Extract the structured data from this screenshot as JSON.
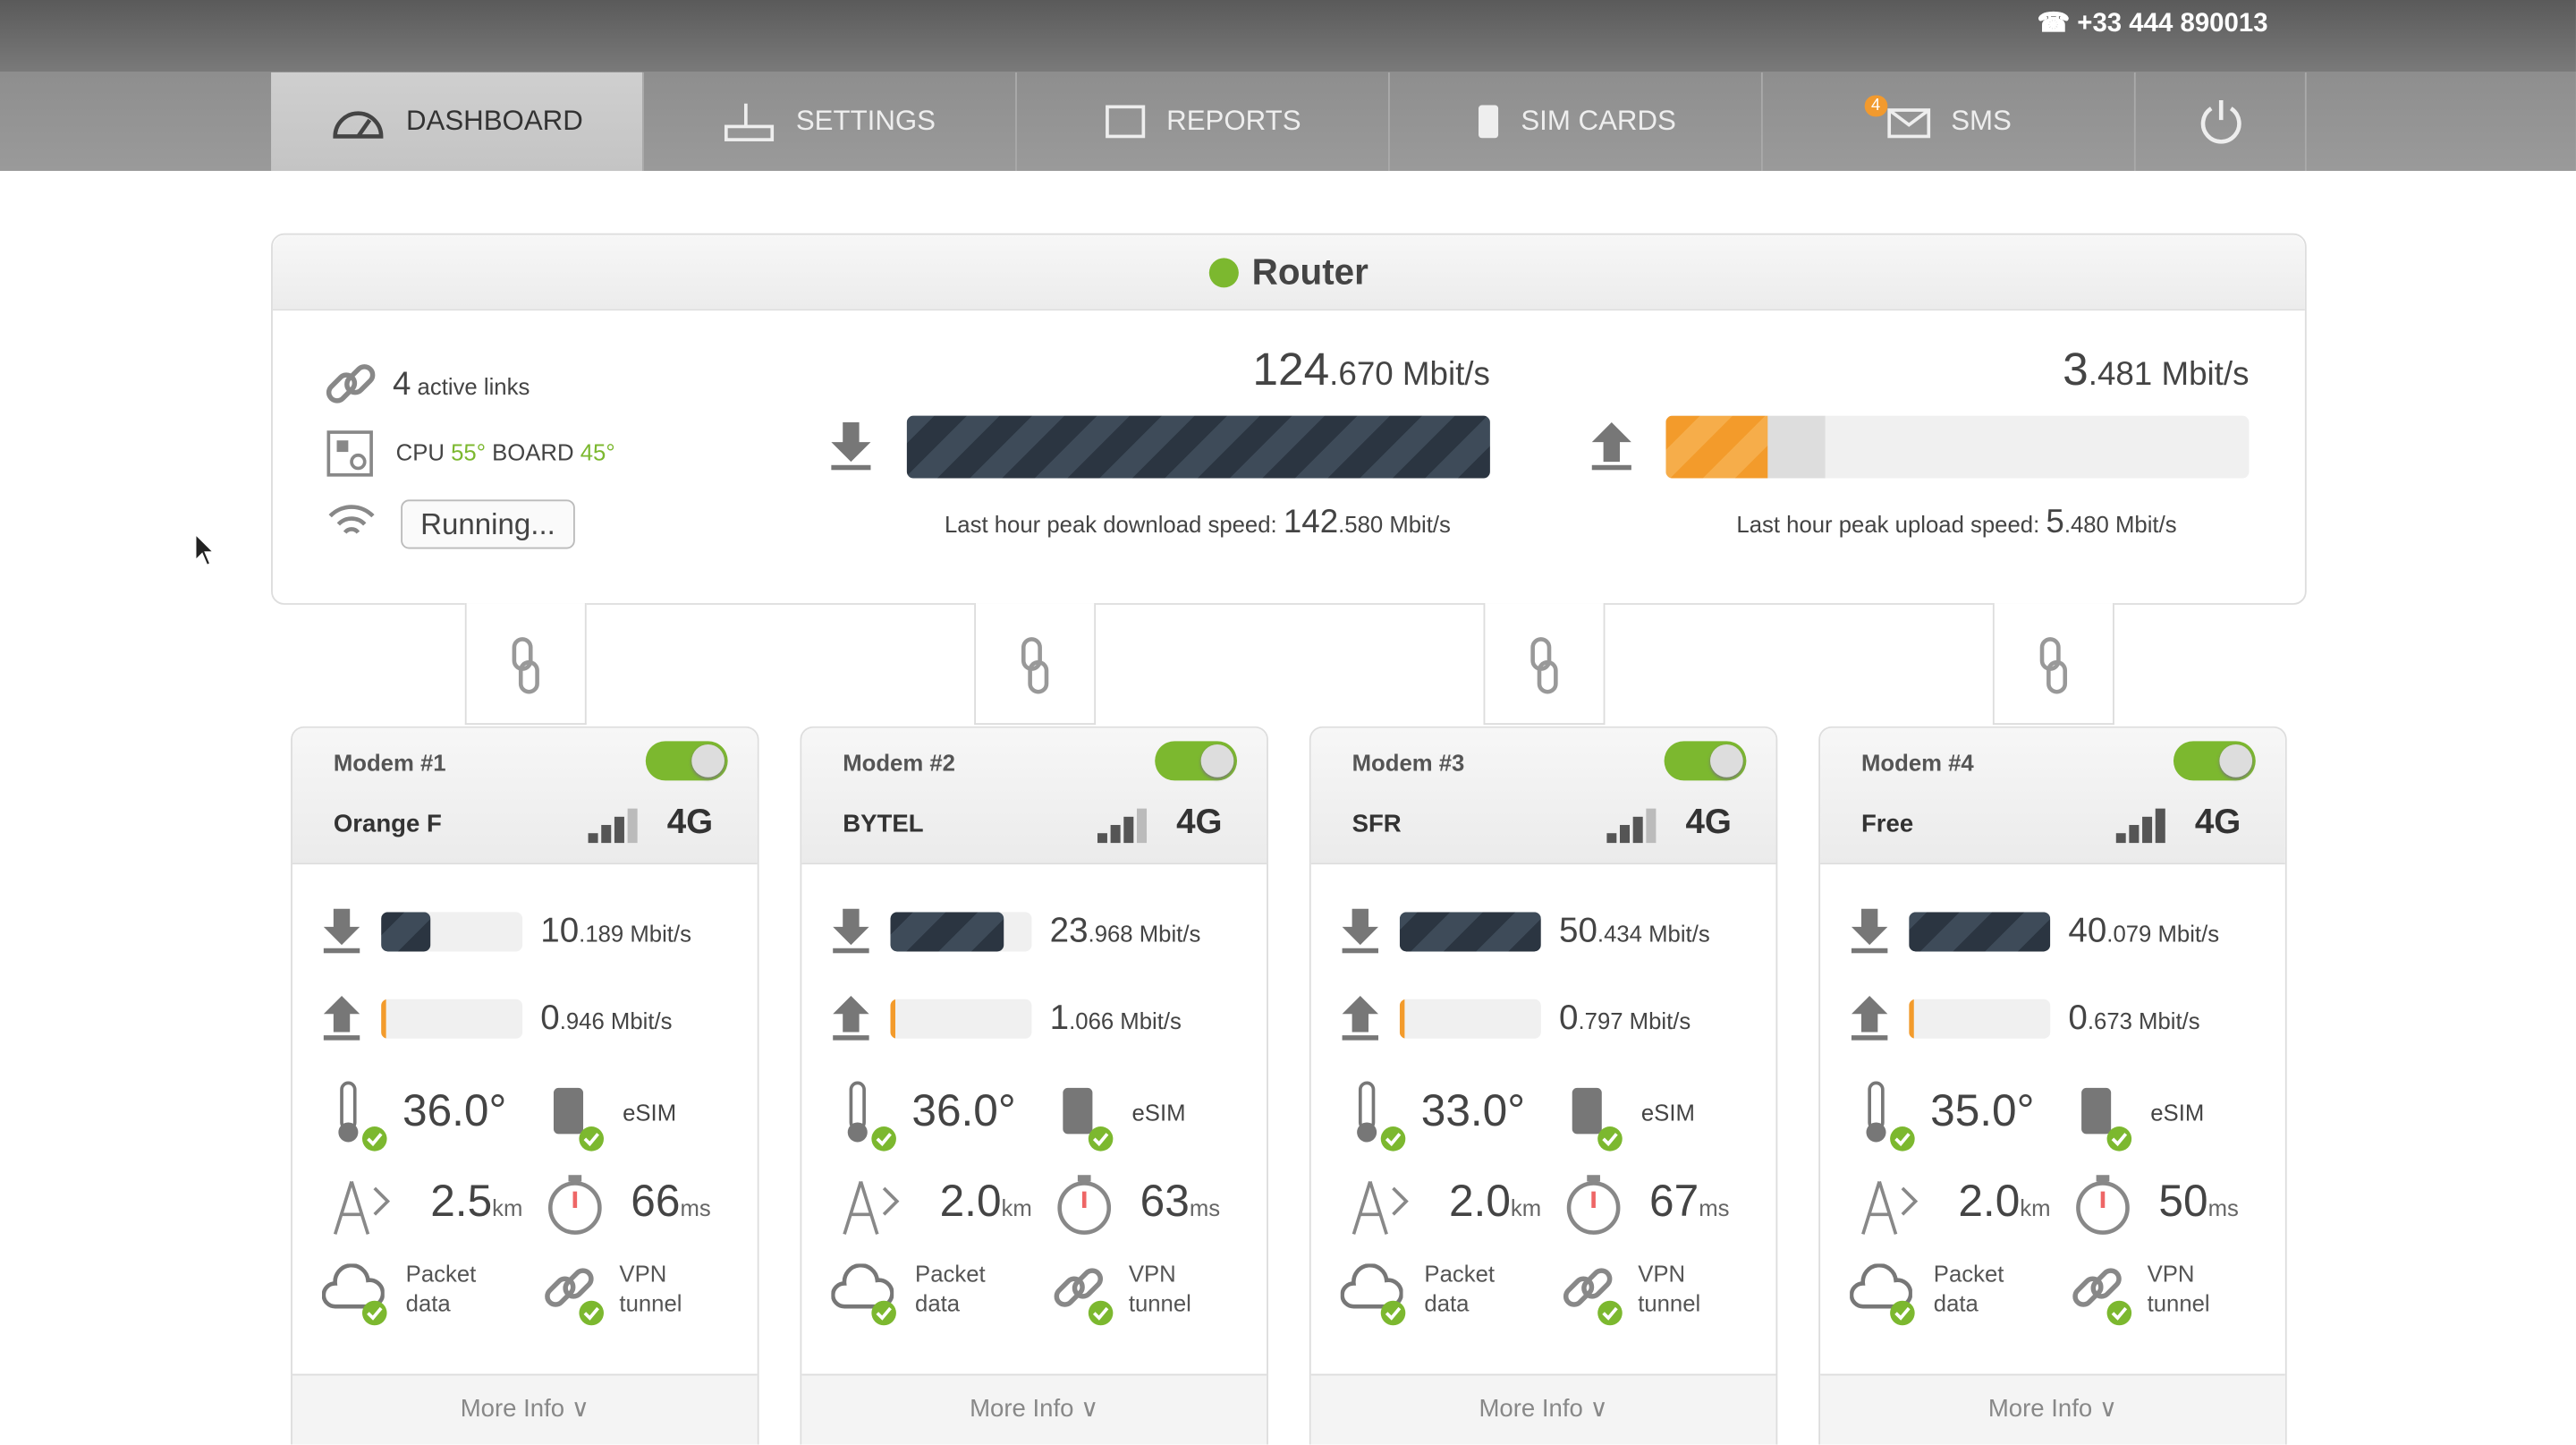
{
  "header": {
    "phone": "+33 444 890013"
  },
  "nav": {
    "tabs": [
      "DASHBOARD",
      "SETTINGS",
      "REPORTS",
      "SIM CARDS",
      "SMS"
    ],
    "sms_badge": "4"
  },
  "router": {
    "title": "Router",
    "links_count": "4",
    "links_label": "active links",
    "cpu_label": "CPU",
    "cpu_temp": "55°",
    "board_label": "BOARD",
    "board_temp": "45°",
    "status": "Running...",
    "download": {
      "int": "124",
      "dec": ".670",
      "unit": "Mbit/s",
      "peak_label": "Last hour peak download speed:",
      "peak_int": "142",
      "peak_dec": ".580 Mbit/s"
    },
    "upload": {
      "int": "3",
      "dec": ".481",
      "unit": "Mbit/s",
      "peak_label": "Last hour peak upload speed:",
      "peak_int": "5",
      "peak_dec": ".480 Mbit/s"
    }
  },
  "modems": [
    {
      "name": "Modem #1",
      "carrier": "Orange F",
      "network": "4G",
      "down_int": "10",
      "down_dec": ".189 Mbit/s",
      "up_int": "0",
      "up_dec": ".946 Mbit/s",
      "temp": "36.0°",
      "sim": "eSIM",
      "distance": "2.5",
      "distance_unit": "km",
      "latency": "66",
      "latency_unit": "ms",
      "packet": "Packet data",
      "vpn": "VPN tunnel",
      "more": "More Info"
    },
    {
      "name": "Modem #2",
      "carrier": "BYTEL",
      "network": "4G",
      "down_int": "23",
      "down_dec": ".968 Mbit/s",
      "up_int": "1",
      "up_dec": ".066 Mbit/s",
      "temp": "36.0°",
      "sim": "eSIM",
      "distance": "2.0",
      "distance_unit": "km",
      "latency": "63",
      "latency_unit": "ms",
      "packet": "Packet data",
      "vpn": "VPN tunnel",
      "more": "More Info"
    },
    {
      "name": "Modem #3",
      "carrier": "SFR",
      "network": "4G",
      "down_int": "50",
      "down_dec": ".434 Mbit/s",
      "up_int": "0",
      "up_dec": ".797 Mbit/s",
      "temp": "33.0°",
      "sim": "eSIM",
      "distance": "2.0",
      "distance_unit": "km",
      "latency": "67",
      "latency_unit": "ms",
      "packet": "Packet data",
      "vpn": "VPN tunnel",
      "more": "More Info"
    },
    {
      "name": "Modem #4",
      "carrier": "Free",
      "network": "4G",
      "down_int": "40",
      "down_dec": ".079 Mbit/s",
      "up_int": "0",
      "up_dec": ".673 Mbit/s",
      "temp": "35.0°",
      "sim": "eSIM",
      "distance": "2.0",
      "distance_unit": "km",
      "latency": "50",
      "latency_unit": "ms",
      "packet": "Packet data",
      "vpn": "VPN tunnel",
      "more": "More Info"
    }
  ]
}
